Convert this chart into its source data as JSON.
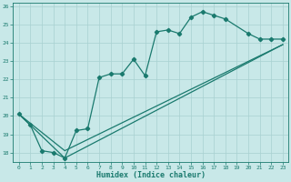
{
  "title": "",
  "xlabel": "Humidex (Indice chaleur)",
  "ylabel": "",
  "x_values": [
    0,
    1,
    2,
    3,
    4,
    5,
    6,
    7,
    8,
    9,
    10,
    11,
    12,
    13,
    14,
    15,
    16,
    17,
    18,
    19,
    20,
    21,
    22,
    23
  ],
  "line1_y": [
    20.1,
    19.5,
    18.1,
    18.0,
    17.7,
    19.2,
    19.3,
    22.1,
    22.3,
    22.3,
    23.1,
    22.2,
    24.6,
    24.7,
    24.5,
    25.4,
    25.7,
    25.5,
    25.3,
    null,
    24.5,
    24.2,
    24.2,
    24.2
  ],
  "line2_x": [
    0,
    4,
    23
  ],
  "line2_y": [
    20.1,
    18.1,
    23.9
  ],
  "line3_x": [
    0,
    4,
    23
  ],
  "line3_y": [
    20.1,
    17.7,
    23.9
  ],
  "ylim": [
    17.5,
    26.2
  ],
  "xlim": [
    -0.5,
    23.5
  ],
  "yticks": [
    18,
    19,
    20,
    21,
    22,
    23,
    24,
    25,
    26
  ],
  "xticks": [
    0,
    1,
    2,
    3,
    4,
    5,
    6,
    7,
    8,
    9,
    10,
    11,
    12,
    13,
    14,
    15,
    16,
    17,
    18,
    19,
    20,
    21,
    22,
    23
  ],
  "line_color": "#1a7a6e",
  "bg_color": "#c8e8e8",
  "grid_color": "#a8d0d0",
  "font_color": "#1a7a6e"
}
